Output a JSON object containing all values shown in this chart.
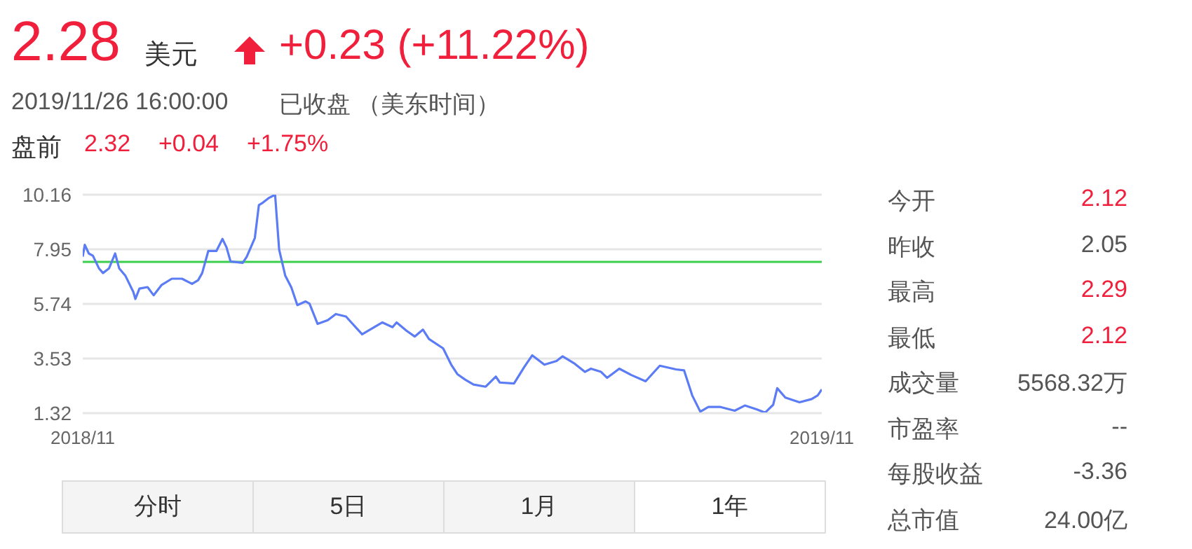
{
  "chart_data": {
    "type": "line",
    "title": "2.28",
    "annotations": [
      "美元",
      "+0.23 (+11.22%)",
      "2019/11/26 16:00:00",
      "已收盘 （美东时间）",
      "盘前",
      "2.32",
      "+0.04",
      "+1.75%",
      "今开",
      "2.12",
      "昨收",
      "2.05",
      "最高",
      "2.29",
      "最低",
      "2.12",
      "成交量",
      "5568.32万",
      "市盈率",
      "--",
      "每股收益",
      "-3.36",
      "总市值",
      "24.00亿",
      "分时",
      "5日",
      "1月",
      "1年"
    ],
    "x": [
      "2018-11-26",
      "2018-11-27",
      "2018-11-29",
      "2018-12-01",
      "2018-12-04",
      "2018-12-06",
      "2018-12-09",
      "2018-12-12",
      "2018-12-14",
      "2018-12-17",
      "2018-12-21",
      "2018-12-22",
      "2018-12-24",
      "2018-12-28",
      "2018-12-31",
      "2019-01-04",
      "2019-01-09",
      "2019-01-14",
      "2019-01-19",
      "2019-01-22",
      "2019-01-24",
      "2019-01-27",
      "2019-01-31",
      "2019-02-03",
      "2019-02-05",
      "2019-02-07",
      "2019-02-13",
      "2019-02-15",
      "2019-02-19",
      "2019-02-21",
      "2019-02-23",
      "2019-02-26",
      "2019-03-01",
      "2019-03-03",
      "2019-03-06",
      "2019-03-09",
      "2019-03-12",
      "2019-03-16",
      "2019-03-18",
      "2019-03-22",
      "2019-03-27",
      "2019-03-31",
      "2019-04-05",
      "2019-04-13",
      "2019-04-19",
      "2019-04-23",
      "2019-04-28",
      "2019-04-30",
      "2019-05-05",
      "2019-05-09",
      "2019-05-13",
      "2019-05-16",
      "2019-05-23",
      "2019-05-27",
      "2019-05-30",
      "2019-06-03",
      "2019-06-07",
      "2019-06-13",
      "2019-06-18",
      "2019-06-20",
      "2019-06-27",
      "2019-07-02",
      "2019-07-06",
      "2019-07-12",
      "2019-07-18",
      "2019-07-21",
      "2019-07-27",
      "2019-08-01",
      "2019-08-04",
      "2019-08-09",
      "2019-08-12",
      "2019-08-18",
      "2019-08-24",
      "2019-08-31",
      "2019-09-07",
      "2019-09-15",
      "2019-09-19",
      "2019-09-23",
      "2019-09-27",
      "2019-10-01",
      "2019-10-07",
      "2019-10-14",
      "2019-10-19",
      "2019-10-25",
      "2019-10-29",
      "2019-11-02",
      "2019-11-04",
      "2019-11-08",
      "2019-11-15",
      "2019-11-21",
      "2019-11-24",
      "2019-11-26"
    ],
    "series": [
      {
        "color": "#5b7cf5",
        "values": [
          7.65,
          8.13,
          7.78,
          7.69,
          7.18,
          6.99,
          7.18,
          7.78,
          7.18,
          6.89,
          6.22,
          5.94,
          6.36,
          6.42,
          6.09,
          6.51,
          6.76,
          6.76,
          6.55,
          6.7,
          6.99,
          7.88,
          7.88,
          8.37,
          8.03,
          7.46,
          7.4,
          7.65,
          8.41,
          9.74,
          9.84,
          10.03,
          10.16,
          7.94,
          6.89,
          6.41,
          5.69,
          5.84,
          5.75,
          4.93,
          5.08,
          5.33,
          5.23,
          4.51,
          4.8,
          4.99,
          4.8,
          4.99,
          4.65,
          4.42,
          4.7,
          4.32,
          3.94,
          3.28,
          2.9,
          2.67,
          2.48,
          2.39,
          2.8,
          2.56,
          2.52,
          3.18,
          3.66,
          3.28,
          3.43,
          3.62,
          3.32,
          2.99,
          3.12,
          2.99,
          2.75,
          3.12,
          2.86,
          2.61,
          3.24,
          3.09,
          3.05,
          2.04,
          1.38,
          1.57,
          1.57,
          1.42,
          1.63,
          1.47,
          1.34,
          1.66,
          2.33,
          1.95,
          1.76,
          1.89,
          2.04,
          2.28
        ]
      }
    ],
    "xlim": [
      "2018-11-26",
      "2019-11-26"
    ],
    "xticks": [
      {
        "value": "2018-11-26",
        "label": "2018/11"
      },
      {
        "value": "2019-11-26",
        "label": "2019/11"
      }
    ],
    "ylim": [
      1.32,
      10.16
    ],
    "yticks": [
      1.32,
      3.53,
      5.74,
      7.95,
      10.16
    ],
    "ref_lines": [
      {
        "axis": "y",
        "value": 7.44,
        "color": "#3ccf4e"
      }
    ],
    "grid": "y",
    "legend": false,
    "marker": "none",
    "line_style": "solid"
  }
}
